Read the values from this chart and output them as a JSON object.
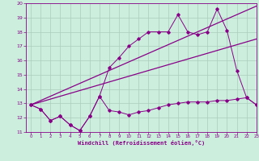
{
  "bg_color": "#cceedd",
  "grid_color": "#aaccbb",
  "line_color": "#880088",
  "xlim": [
    -0.5,
    23
  ],
  "ylim": [
    11,
    20
  ],
  "xticks": [
    0,
    1,
    2,
    3,
    4,
    5,
    6,
    7,
    8,
    9,
    10,
    11,
    12,
    13,
    14,
    15,
    16,
    17,
    18,
    19,
    20,
    21,
    22,
    23
  ],
  "yticks": [
    11,
    12,
    13,
    14,
    15,
    16,
    17,
    18,
    19,
    20
  ],
  "xlabel": "Windchill (Refroidissement éolien,°C)",
  "series1_x": [
    0,
    1,
    2,
    3,
    4,
    5,
    6,
    7,
    8,
    9,
    10,
    11,
    12,
    13,
    14,
    15,
    16,
    17,
    18,
    19,
    20,
    21,
    22,
    23
  ],
  "series1_y": [
    12.9,
    12.6,
    11.8,
    12.1,
    11.5,
    11.1,
    12.1,
    13.5,
    12.5,
    12.4,
    12.2,
    12.4,
    12.5,
    12.7,
    12.9,
    13.0,
    13.1,
    13.1,
    13.1,
    13.2,
    13.2,
    13.3,
    13.4,
    12.9
  ],
  "series2_x": [
    0,
    1,
    2,
    3,
    4,
    5,
    6,
    7,
    8,
    9,
    10,
    11,
    12,
    13,
    14,
    15,
    16,
    17,
    18,
    19,
    20,
    21,
    22,
    23
  ],
  "series2_y": [
    12.9,
    12.6,
    11.8,
    12.1,
    11.5,
    11.1,
    12.1,
    13.5,
    15.5,
    16.2,
    17.0,
    17.5,
    18.0,
    18.0,
    18.0,
    19.2,
    18.0,
    17.8,
    18.0,
    19.6,
    18.1,
    15.3,
    13.4,
    12.9
  ],
  "series3_x": [
    0,
    23
  ],
  "series3_y": [
    12.9,
    19.8
  ],
  "series4_x": [
    0,
    23
  ],
  "series4_y": [
    12.9,
    17.5
  ]
}
